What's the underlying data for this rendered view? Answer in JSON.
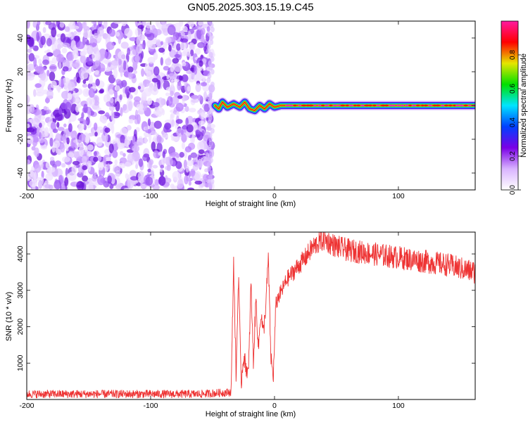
{
  "title": "GN05.2025.303.15.19.C45",
  "chart_data": [
    {
      "type": "heatmap",
      "xlabel": "Height of straight line (km)",
      "ylabel": "Frequency (Hz)",
      "xlim": [
        -200,
        162
      ],
      "ylim": [
        -50,
        50
      ],
      "xticks": [
        -200,
        -100,
        0,
        100
      ],
      "yticks": [
        -40,
        -20,
        0,
        20,
        40
      ],
      "grid": false,
      "noise_region_x": [
        -200,
        -50
      ],
      "signal_track": [
        {
          "x": -48,
          "y": 0
        },
        {
          "x": -45,
          "y": -2
        },
        {
          "x": -42,
          "y": 2
        },
        {
          "x": -38,
          "y": -1
        },
        {
          "x": -33,
          "y": 1
        },
        {
          "x": -28,
          "y": -1
        },
        {
          "x": -24,
          "y": 2
        },
        {
          "x": -20,
          "y": -2
        },
        {
          "x": -16,
          "y": -3
        },
        {
          "x": -12,
          "y": 0
        },
        {
          "x": -8,
          "y": -2
        },
        {
          "x": -4,
          "y": 1
        },
        {
          "x": 0,
          "y": -1
        },
        {
          "x": 5,
          "y": 0
        },
        {
          "x": 20,
          "y": 0
        },
        {
          "x": 60,
          "y": 0
        },
        {
          "x": 100,
          "y": 0
        },
        {
          "x": 162,
          "y": 0
        }
      ],
      "colorbar": {
        "label": "Normalized spectral amplitude",
        "range": [
          0,
          1
        ],
        "ticks": [
          "0.0",
          "0.2",
          "0.4",
          "0.6",
          "0.8"
        ],
        "colors": [
          "#ffffff",
          "#d9b3ff",
          "#7a00e6",
          "#0040ff",
          "#00e5ff",
          "#00e000",
          "#e6e600",
          "#ff0000",
          "#ff1aa0"
        ]
      }
    },
    {
      "type": "line",
      "xlabel": "Height of straight line (km)",
      "ylabel": "SNR (10 * v/v)",
      "xlim": [
        -200,
        162
      ],
      "ylim": [
        0,
        4600
      ],
      "xticks": [
        -200,
        -100,
        0,
        100
      ],
      "yticks": [
        1000,
        2000,
        3000,
        4000
      ],
      "grid": false,
      "series": [
        {
          "color": "#ee3333",
          "x": [
            -200,
            -150,
            -100,
            -60,
            -35,
            -33,
            -31,
            -29,
            -27,
            -25,
            -23,
            -21,
            -19,
            -17,
            -15,
            -13,
            -11,
            -9,
            -7,
            -5,
            -3,
            -1,
            0,
            1,
            3,
            6,
            10,
            15,
            20,
            25,
            30,
            35,
            40,
            45,
            50,
            60,
            70,
            80,
            90,
            100,
            110,
            120,
            130,
            140,
            150,
            162
          ],
          "y": [
            150,
            150,
            150,
            150,
            200,
            3800,
            600,
            3500,
            400,
            1200,
            900,
            700,
            3200,
            1000,
            2800,
            1400,
            2400,
            1800,
            2600,
            3900,
            1200,
            600,
            1500,
            2600,
            2800,
            3000,
            3300,
            3500,
            3700,
            3900,
            4150,
            4300,
            4400,
            4300,
            4200,
            4100,
            4050,
            4000,
            3950,
            3900,
            3850,
            3800,
            3750,
            3700,
            3600,
            3500
          ]
        }
      ]
    }
  ]
}
